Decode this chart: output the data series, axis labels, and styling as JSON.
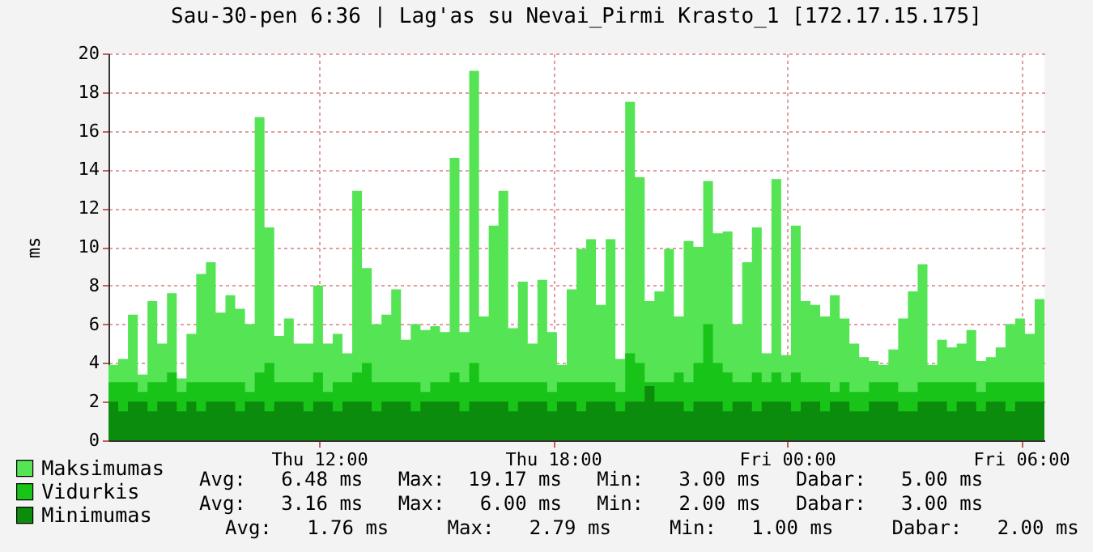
{
  "chart_data": {
    "type": "area",
    "title": "Sau-30-pen 6:36 | Lag'as su Nevai_Pirmi Krasto_1 [172.17.15.175]",
    "ylabel": "ms",
    "x": [
      "--01-29T06:36",
      "--01-29T06:51",
      "--01-29T07:06",
      "--01-29T07:21",
      "--01-29T07:36",
      "--01-29T07:51",
      "--01-29T08:06",
      "--01-29T08:21",
      "--01-29T08:36",
      "--01-29T08:51",
      "--01-29T09:06",
      "--01-29T09:21",
      "--01-29T09:36",
      "--01-29T09:51",
      "--01-29T10:06",
      "--01-29T10:21",
      "--01-29T10:36",
      "--01-29T10:51",
      "--01-29T11:06",
      "--01-29T11:21",
      "--01-29T11:36",
      "--01-29T11:51",
      "--01-29T12:06",
      "--01-29T12:21",
      "--01-29T12:36",
      "--01-29T12:51",
      "--01-29T13:06",
      "--01-29T13:21",
      "--01-29T13:36",
      "--01-29T13:51",
      "--01-29T14:06",
      "--01-29T14:21",
      "--01-29T14:36",
      "--01-29T14:51",
      "--01-29T15:06",
      "--01-29T15:21",
      "--01-29T15:36",
      "--01-29T15:51",
      "--01-29T16:06",
      "--01-29T16:21",
      "--01-29T16:36",
      "--01-29T16:51",
      "--01-29T17:06",
      "--01-29T17:21",
      "--01-29T17:36",
      "--01-29T17:51",
      "--01-29T18:06",
      "--01-29T18:21",
      "--01-29T18:36",
      "--01-29T18:51",
      "--01-29T19:06",
      "--01-29T19:21",
      "--01-29T19:36",
      "--01-29T19:51",
      "--01-29T20:06",
      "--01-29T20:21",
      "--01-29T20:36",
      "--01-29T20:51",
      "--01-29T21:06",
      "--01-29T21:21",
      "--01-29T21:36",
      "--01-29T21:51",
      "--01-29T22:06",
      "--01-29T22:21",
      "--01-29T22:36",
      "--01-29T22:51",
      "--01-29T23:06",
      "--01-29T23:21",
      "--01-29T23:36",
      "--01-29T23:51",
      "--01-30T00:06",
      "--01-30T00:21",
      "--01-30T00:36",
      "--01-30T00:51",
      "--01-30T01:06",
      "--01-30T01:21",
      "--01-30T01:36",
      "--01-30T01:51",
      "--01-30T02:06",
      "--01-30T02:21",
      "--01-30T02:36",
      "--01-30T02:51",
      "--01-30T03:06",
      "--01-30T03:21",
      "--01-30T03:36",
      "--01-30T03:51",
      "--01-30T04:06",
      "--01-30T04:21",
      "--01-30T04:36",
      "--01-30T04:51",
      "--01-30T05:06",
      "--01-30T05:21",
      "--01-30T05:36",
      "--01-30T05:51",
      "--01-30T06:06",
      "--01-30T06:21",
      "--01-30T06:36"
    ],
    "series": [
      {
        "name": "Maksimumas",
        "color": "#54e454",
        "values": [
          3.9,
          4.2,
          6.5,
          3.4,
          7.2,
          5.0,
          7.6,
          3.2,
          5.5,
          8.6,
          9.2,
          6.6,
          7.5,
          6.8,
          6.0,
          16.7,
          11.0,
          5.4,
          6.3,
          5.0,
          5.0,
          8.0,
          5.0,
          5.5,
          4.5,
          12.9,
          8.9,
          6.0,
          6.5,
          7.8,
          5.2,
          6.0,
          5.7,
          5.9,
          5.6,
          14.6,
          5.6,
          19.1,
          6.4,
          11.1,
          12.9,
          5.8,
          8.2,
          5.0,
          8.3,
          5.6,
          3.9,
          7.8,
          9.9,
          10.4,
          7.0,
          10.4,
          4.2,
          17.5,
          13.6,
          7.2,
          7.7,
          9.9,
          6.4,
          10.3,
          10.0,
          13.4,
          10.7,
          10.8,
          6.0,
          9.2,
          11.0,
          4.5,
          13.5,
          4.4,
          11.1,
          7.2,
          7.0,
          6.4,
          7.5,
          6.3,
          5.0,
          4.3,
          4.1,
          3.9,
          4.7,
          6.3,
          7.7,
          9.1,
          3.9,
          5.2,
          4.8,
          5.0,
          5.7,
          4.1,
          4.3,
          4.8,
          6.0,
          6.3,
          5.5,
          7.3,
          5.0
        ]
      },
      {
        "name": "Vidurkis",
        "color": "#18c418",
        "values": [
          3,
          3,
          3,
          2.5,
          3,
          3,
          3.5,
          2.5,
          3,
          3,
          3,
          3,
          3,
          3,
          2.5,
          3.5,
          4,
          3,
          3,
          3,
          3,
          3.5,
          2.5,
          3,
          3,
          3.5,
          4,
          3,
          3,
          3,
          3,
          3,
          2.5,
          3,
          3,
          3.5,
          3,
          4,
          3,
          3,
          3,
          3,
          3,
          3,
          3,
          2.5,
          3,
          3,
          3,
          3,
          3,
          3,
          2.5,
          4.5,
          4,
          3,
          3,
          3,
          3.5,
          3,
          4,
          6,
          4,
          3.5,
          3,
          3,
          3.5,
          3,
          3.5,
          3,
          3.5,
          3,
          3,
          3,
          2.5,
          3,
          2.5,
          2.5,
          3,
          3,
          3,
          2.5,
          2.5,
          3,
          3,
          3,
          3,
          3,
          3,
          2.5,
          3,
          3,
          3,
          3,
          3,
          3,
          3
        ]
      },
      {
        "name": "Minimumas",
        "color": "#0c8c0c",
        "values": [
          2,
          1.5,
          2,
          2,
          1.5,
          2,
          2,
          1.5,
          2,
          1.5,
          2,
          2,
          2,
          1.5,
          2,
          2,
          1.5,
          2,
          2,
          2,
          1.5,
          2,
          2,
          1.5,
          2,
          2,
          2,
          1.5,
          2,
          2,
          2,
          1.5,
          2,
          2,
          2,
          2,
          1.5,
          2,
          2,
          2,
          2,
          1.5,
          2,
          2,
          2,
          1.5,
          2,
          2,
          1.5,
          2,
          2,
          2,
          1.5,
          2,
          2,
          2.8,
          2,
          2,
          2,
          1.5,
          2,
          2,
          2,
          1.5,
          2,
          2,
          1.5,
          2,
          2,
          2,
          1.5,
          2,
          2,
          1.5,
          2,
          2,
          1.5,
          1.5,
          2,
          2,
          2,
          1.5,
          1.5,
          2,
          2,
          2,
          1.5,
          2,
          2,
          1.5,
          2,
          2,
          1.5,
          2,
          2,
          2,
          2
        ]
      }
    ],
    "xlim": [
      "--01-29T06:36",
      "--01-30T06:36"
    ],
    "xticks": [
      {
        "value": "--01-29T12:00",
        "label": "Thu 12:00"
      },
      {
        "value": "--01-29T18:00",
        "label": "Thu 18:00"
      },
      {
        "value": "--01-30T00:00",
        "label": "Fri 00:00"
      },
      {
        "value": "--01-30T06:00",
        "label": "Fri 06:00"
      }
    ],
    "ylim": [
      0,
      20
    ],
    "yticks": [
      0,
      2,
      4,
      6,
      8,
      10,
      12,
      14,
      16,
      18,
      20
    ],
    "grid": true,
    "legend": "bottom left",
    "annotations": [
      "Avg:   6.48 ms   Max:  19.17 ms   Min:   3.00 ms   Dabar:   5.00 ms",
      "Avg:   3.16 ms   Max:   6.00 ms   Min:   2.00 ms   Dabar:   3.00 ms",
      "Avg:   1.76 ms     Max:   2.79 ms     Min:   1.00 ms     Dabar:   2.00 ms"
    ]
  }
}
